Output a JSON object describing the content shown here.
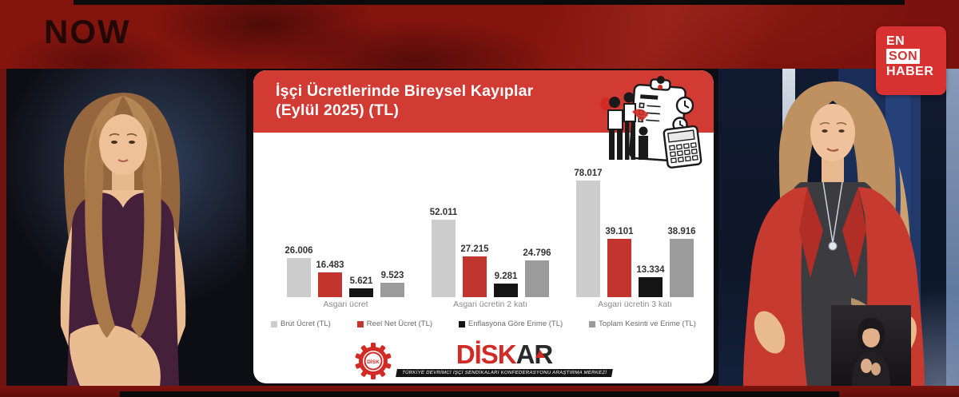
{
  "broadcast": {
    "channel_logo": "NOW",
    "watermark": {
      "line1": "EN",
      "line2": "SON",
      "line3": "HABER"
    }
  },
  "infographic": {
    "title_line1": "İşçi Ücretlerinde Bireysel Kayıplar",
    "title_line2": "(Eylül 2025) (TL)",
    "logo": {
      "gear_text": "DİSK",
      "wordmark_red": "DİSK",
      "wordmark_dark": "AR",
      "tagline": "TÜRKİYE DEVRİMCİ İŞÇİ SENDİKALARI KONFEDERASYONU ARAŞTIRMA MERKEZİ"
    }
  },
  "colors": {
    "header_red": "#d23a34",
    "badge_red": "#d83131",
    "logo_red": "#d22b26",
    "banner_dark_red": "#84140e"
  },
  "chart_data": {
    "type": "bar",
    "title": "İşçi Ücretlerinde Bireysel Kayıplar (Eylül 2025) (TL)",
    "categories": [
      "Asgari ücret",
      "Asgari ücretin 2 katı",
      "Asgari ücretin 3 katı"
    ],
    "series": [
      {
        "name": "Brüt Ücret (TL)",
        "color": "#cdcdcd",
        "values": [
          26006,
          52011,
          78017
        ],
        "labels": [
          "26.006",
          "52.011",
          "78.017"
        ]
      },
      {
        "name": "Reel Net Ücret (TL)",
        "color": "#c2342e",
        "values": [
          16483,
          27215,
          39101
        ],
        "labels": [
          "16.483",
          "27.215",
          "39.101"
        ]
      },
      {
        "name": "Enflasyona Göre Erime (TL)",
        "color": "#141414",
        "values": [
          5621,
          9281,
          13334
        ],
        "labels": [
          "5.621",
          "9.281",
          "13.334"
        ]
      },
      {
        "name": "Toplam Kesinti ve Erime (TL)",
        "color": "#9b9b9b",
        "values": [
          9523,
          24796,
          38916
        ],
        "labels": [
          "9.523",
          "24.796",
          "38.916"
        ]
      }
    ],
    "ylim": [
      0,
      80000
    ],
    "grid": false,
    "legend_position": "bottom",
    "value_label_format": "thousands-dot"
  }
}
